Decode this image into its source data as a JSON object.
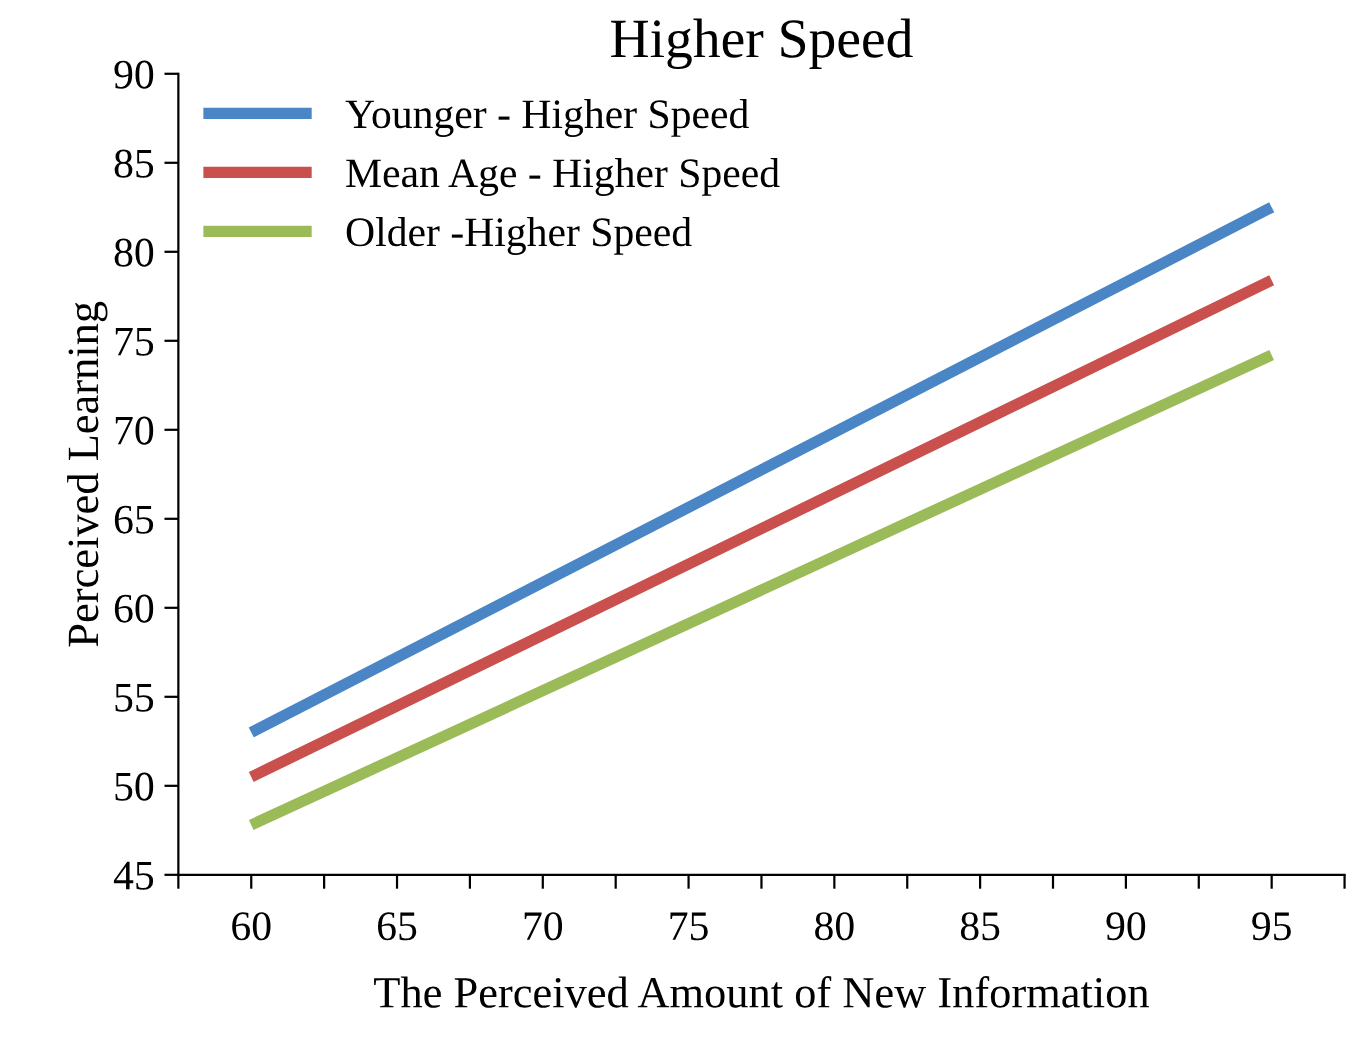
{
  "chart_data": {
    "type": "line",
    "title": "Higher Speed",
    "xlabel": "The Perceived Amount of New Information",
    "ylabel": "Perceived Learning",
    "x": [
      60,
      95
    ],
    "series": [
      {
        "name": "Younger - Higher Speed",
        "color": "#4a86c5",
        "values": [
          53.0,
          82.5
        ]
      },
      {
        "name": "Mean Age - Higher Speed",
        "color": "#c9504d",
        "values": [
          50.5,
          78.4
        ]
      },
      {
        "name": "Older -Higher Speed",
        "color": "#9bbb59",
        "values": [
          47.8,
          74.2
        ]
      }
    ],
    "xlim": [
      57.5,
      97.5
    ],
    "xticks": [
      {
        "value": 57.5,
        "label": null
      },
      60,
      {
        "value": 62.5,
        "label": null
      },
      65,
      {
        "value": 67.5,
        "label": null
      },
      70,
      {
        "value": 72.5,
        "label": null
      },
      75,
      {
        "value": 77.5,
        "label": null
      },
      80,
      {
        "value": 82.5,
        "label": null
      },
      85,
      {
        "value": 87.5,
        "label": null
      },
      90,
      {
        "value": 92.5,
        "label": null
      },
      95,
      {
        "value": 97.5,
        "label": null
      }
    ],
    "ylim": [
      45,
      90
    ],
    "yticks": [
      45,
      50,
      55,
      60,
      65,
      70,
      75,
      80,
      85,
      90
    ],
    "grid": false,
    "legend": "top left",
    "marker": "none",
    "line_style": "solid"
  }
}
